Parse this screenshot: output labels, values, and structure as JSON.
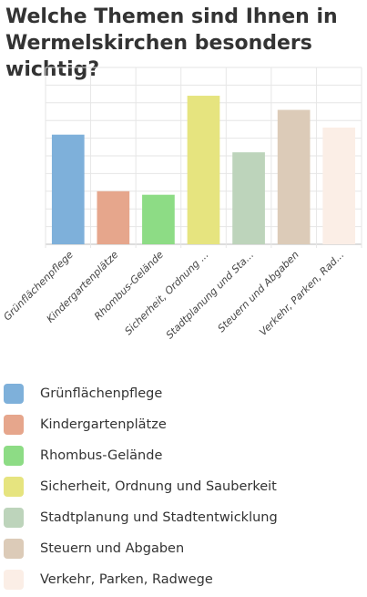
{
  "title": "Welche Themen sind Ihnen in Wermelskirchen besonders wichtig?",
  "chart_data": {
    "type": "bar",
    "title": "Welche Themen sind Ihnen in Wermelskirchen besonders wichtig?",
    "categories": [
      "Grünflächenpflege",
      "Kindergartenplätze",
      "Rhombus-Gelände",
      "Sicherheit, Ordnung ...",
      "Stadtplanung und Sta...",
      "Steuern und Abgaben",
      "Verkehr, Parken, Rad..."
    ],
    "legend_labels": [
      "Grünflächenpflege",
      "Kindergartenplätze",
      "Rhombus-Gelände",
      "Sicherheit, Ordnung und Sauberkeit",
      "Stadtplanung und Stadtentwicklung",
      "Steuern und Abgaben",
      "Verkehr, Parken, Radwege"
    ],
    "values": [
      62,
      30,
      28,
      84,
      52,
      76,
      66
    ],
    "colors": [
      "#7eb0da",
      "#e6a68c",
      "#8ddc85",
      "#e6e47f",
      "#bdd4bb",
      "#dccbb8",
      "#fbeee6"
    ],
    "ylim": [
      0,
      100
    ],
    "xlabel": "",
    "ylabel": "",
    "grid": true,
    "legend_position": "bottom"
  }
}
